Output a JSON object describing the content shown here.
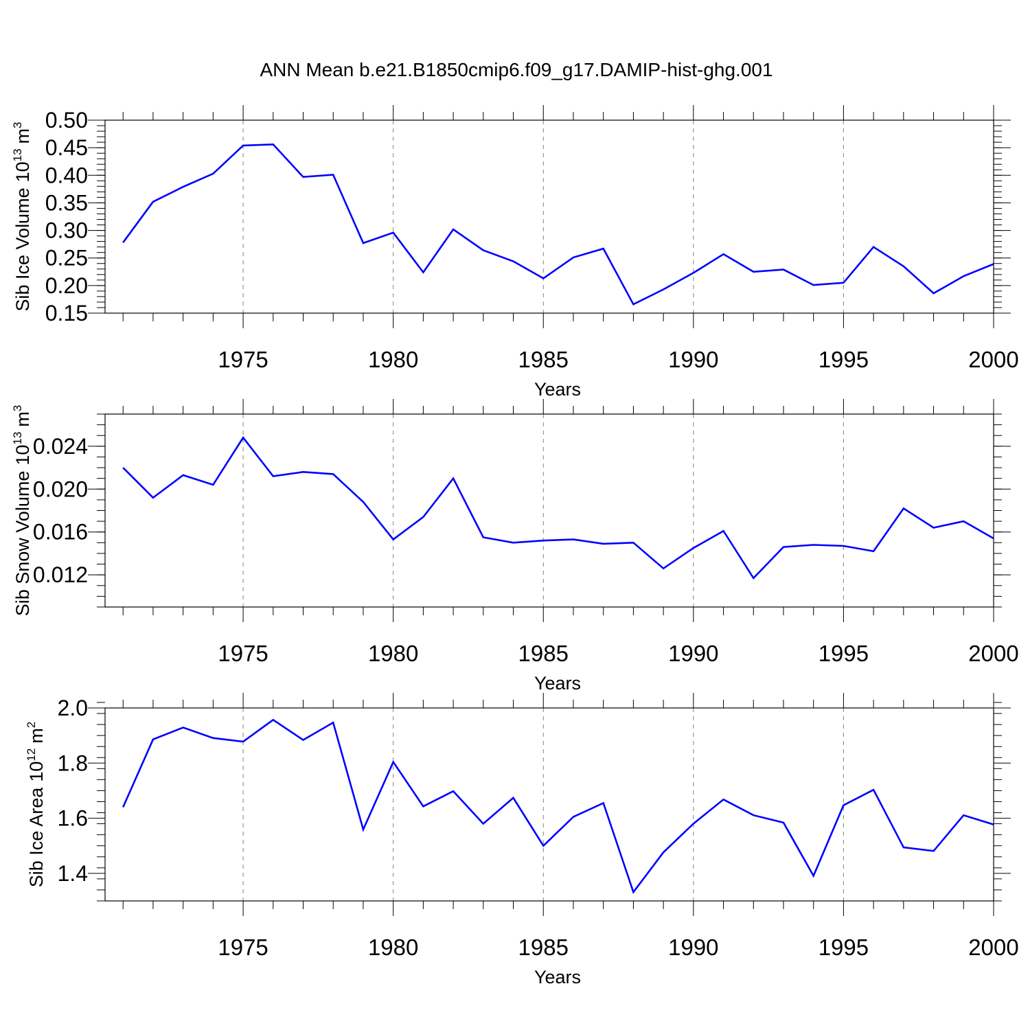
{
  "figure": {
    "title": "ANN Mean b.e21.B1850cmip6.f09_g17.DAMIP-hist-ghg.001",
    "line_color": "#0000ff",
    "grid_color": "#808080",
    "axis_color": "#000000"
  },
  "chart_data": [
    {
      "type": "line",
      "name": "sib-ice-volume",
      "ylabel": "Sib Ice Volume",
      "ylabel_unit_base": "10",
      "ylabel_unit_exp": "13",
      "ylabel_unit_suffix": "m",
      "ylabel_unit_suffix_exp": "3",
      "xlabel": "Years",
      "xlim": [
        1971,
        2000
      ],
      "ylim": [
        0.15,
        0.5
      ],
      "x_ticks": [
        1975,
        1980,
        1985,
        1990,
        1995,
        2000
      ],
      "x_tick_labels": [
        "1975",
        "1980",
        "1985",
        "1990",
        "1995",
        "2000"
      ],
      "y_ticks": [
        0.15,
        0.2,
        0.25,
        0.3,
        0.35,
        0.4,
        0.45,
        0.5
      ],
      "y_tick_labels": [
        "0.15",
        "0.20",
        "0.25",
        "0.30",
        "0.35",
        "0.40",
        "0.45",
        "0.50"
      ],
      "y_minor_step": 0.01,
      "x": [
        1971,
        1972,
        1973,
        1974,
        1975,
        1976,
        1977,
        1978,
        1979,
        1980,
        1981,
        1982,
        1983,
        1984,
        1985,
        1986,
        1987,
        1988,
        1989,
        1990,
        1991,
        1992,
        1993,
        1994,
        1995,
        1996,
        1997,
        1998,
        1999,
        2000
      ],
      "values": [
        0.278,
        0.352,
        0.379,
        0.403,
        0.454,
        0.456,
        0.397,
        0.401,
        0.277,
        0.296,
        0.224,
        0.302,
        0.264,
        0.244,
        0.213,
        0.251,
        0.267,
        0.166,
        0.193,
        0.223,
        0.257,
        0.225,
        0.229,
        0.201,
        0.205,
        0.27,
        0.235,
        0.186,
        0.217,
        0.239
      ]
    },
    {
      "type": "line",
      "name": "sib-snow-volume",
      "ylabel": "Sib Snow Volume",
      "ylabel_unit_base": "10",
      "ylabel_unit_exp": "13",
      "ylabel_unit_suffix": "m",
      "ylabel_unit_suffix_exp": "3",
      "xlabel": "Years",
      "xlim": [
        1971,
        2000
      ],
      "ylim": [
        0.009,
        0.027
      ],
      "x_ticks": [
        1975,
        1980,
        1985,
        1990,
        1995,
        2000
      ],
      "x_tick_labels": [
        "1975",
        "1980",
        "1985",
        "1990",
        "1995",
        "2000"
      ],
      "y_ticks": [
        0.012,
        0.016,
        0.02,
        0.024
      ],
      "y_tick_labels": [
        "0.012",
        "0.016",
        "0.020",
        "0.024"
      ],
      "y_minor_step": 0.001,
      "x": [
        1971,
        1972,
        1973,
        1974,
        1975,
        1976,
        1977,
        1978,
        1979,
        1980,
        1981,
        1982,
        1983,
        1984,
        1985,
        1986,
        1987,
        1988,
        1989,
        1990,
        1991,
        1992,
        1993,
        1994,
        1995,
        1996,
        1997,
        1998,
        1999,
        2000
      ],
      "values": [
        0.022,
        0.0192,
        0.0213,
        0.0204,
        0.0248,
        0.0212,
        0.0216,
        0.0214,
        0.0188,
        0.0153,
        0.0174,
        0.021,
        0.0155,
        0.015,
        0.0152,
        0.0153,
        0.0149,
        0.015,
        0.0126,
        0.0145,
        0.0161,
        0.0117,
        0.0146,
        0.0148,
        0.0147,
        0.0142,
        0.0182,
        0.0164,
        0.017,
        0.0154
      ]
    },
    {
      "type": "line",
      "name": "sib-ice-area",
      "ylabel": "Sib Ice Area",
      "ylabel_unit_base": "10",
      "ylabel_unit_exp": "12",
      "ylabel_unit_suffix": "m",
      "ylabel_unit_suffix_exp": "2",
      "xlabel": "Years",
      "xlim": [
        1971,
        2000
      ],
      "ylim": [
        1.3,
        2.0
      ],
      "x_ticks": [
        1975,
        1980,
        1985,
        1990,
        1995,
        2000
      ],
      "x_tick_labels": [
        "1975",
        "1980",
        "1985",
        "1990",
        "1995",
        "2000"
      ],
      "y_ticks": [
        1.4,
        1.6,
        1.8,
        2.0
      ],
      "y_tick_labels": [
        "1.4",
        "1.6",
        "1.8",
        "2.0"
      ],
      "y_minor_step": 0.04,
      "x": [
        1971,
        1972,
        1973,
        1974,
        1975,
        1976,
        1977,
        1978,
        1979,
        1980,
        1981,
        1982,
        1983,
        1984,
        1985,
        1986,
        1987,
        1988,
        1989,
        1990,
        1991,
        1992,
        1993,
        1994,
        1995,
        1996,
        1997,
        1998,
        1999,
        2000
      ],
      "values": [
        1.64,
        1.886,
        1.929,
        1.891,
        1.878,
        1.957,
        1.884,
        1.947,
        1.559,
        1.804,
        1.643,
        1.698,
        1.58,
        1.674,
        1.5,
        1.605,
        1.655,
        1.332,
        1.476,
        1.58,
        1.668,
        1.611,
        1.584,
        1.391,
        1.647,
        1.703,
        1.494,
        1.481,
        1.611,
        1.577
      ]
    }
  ]
}
